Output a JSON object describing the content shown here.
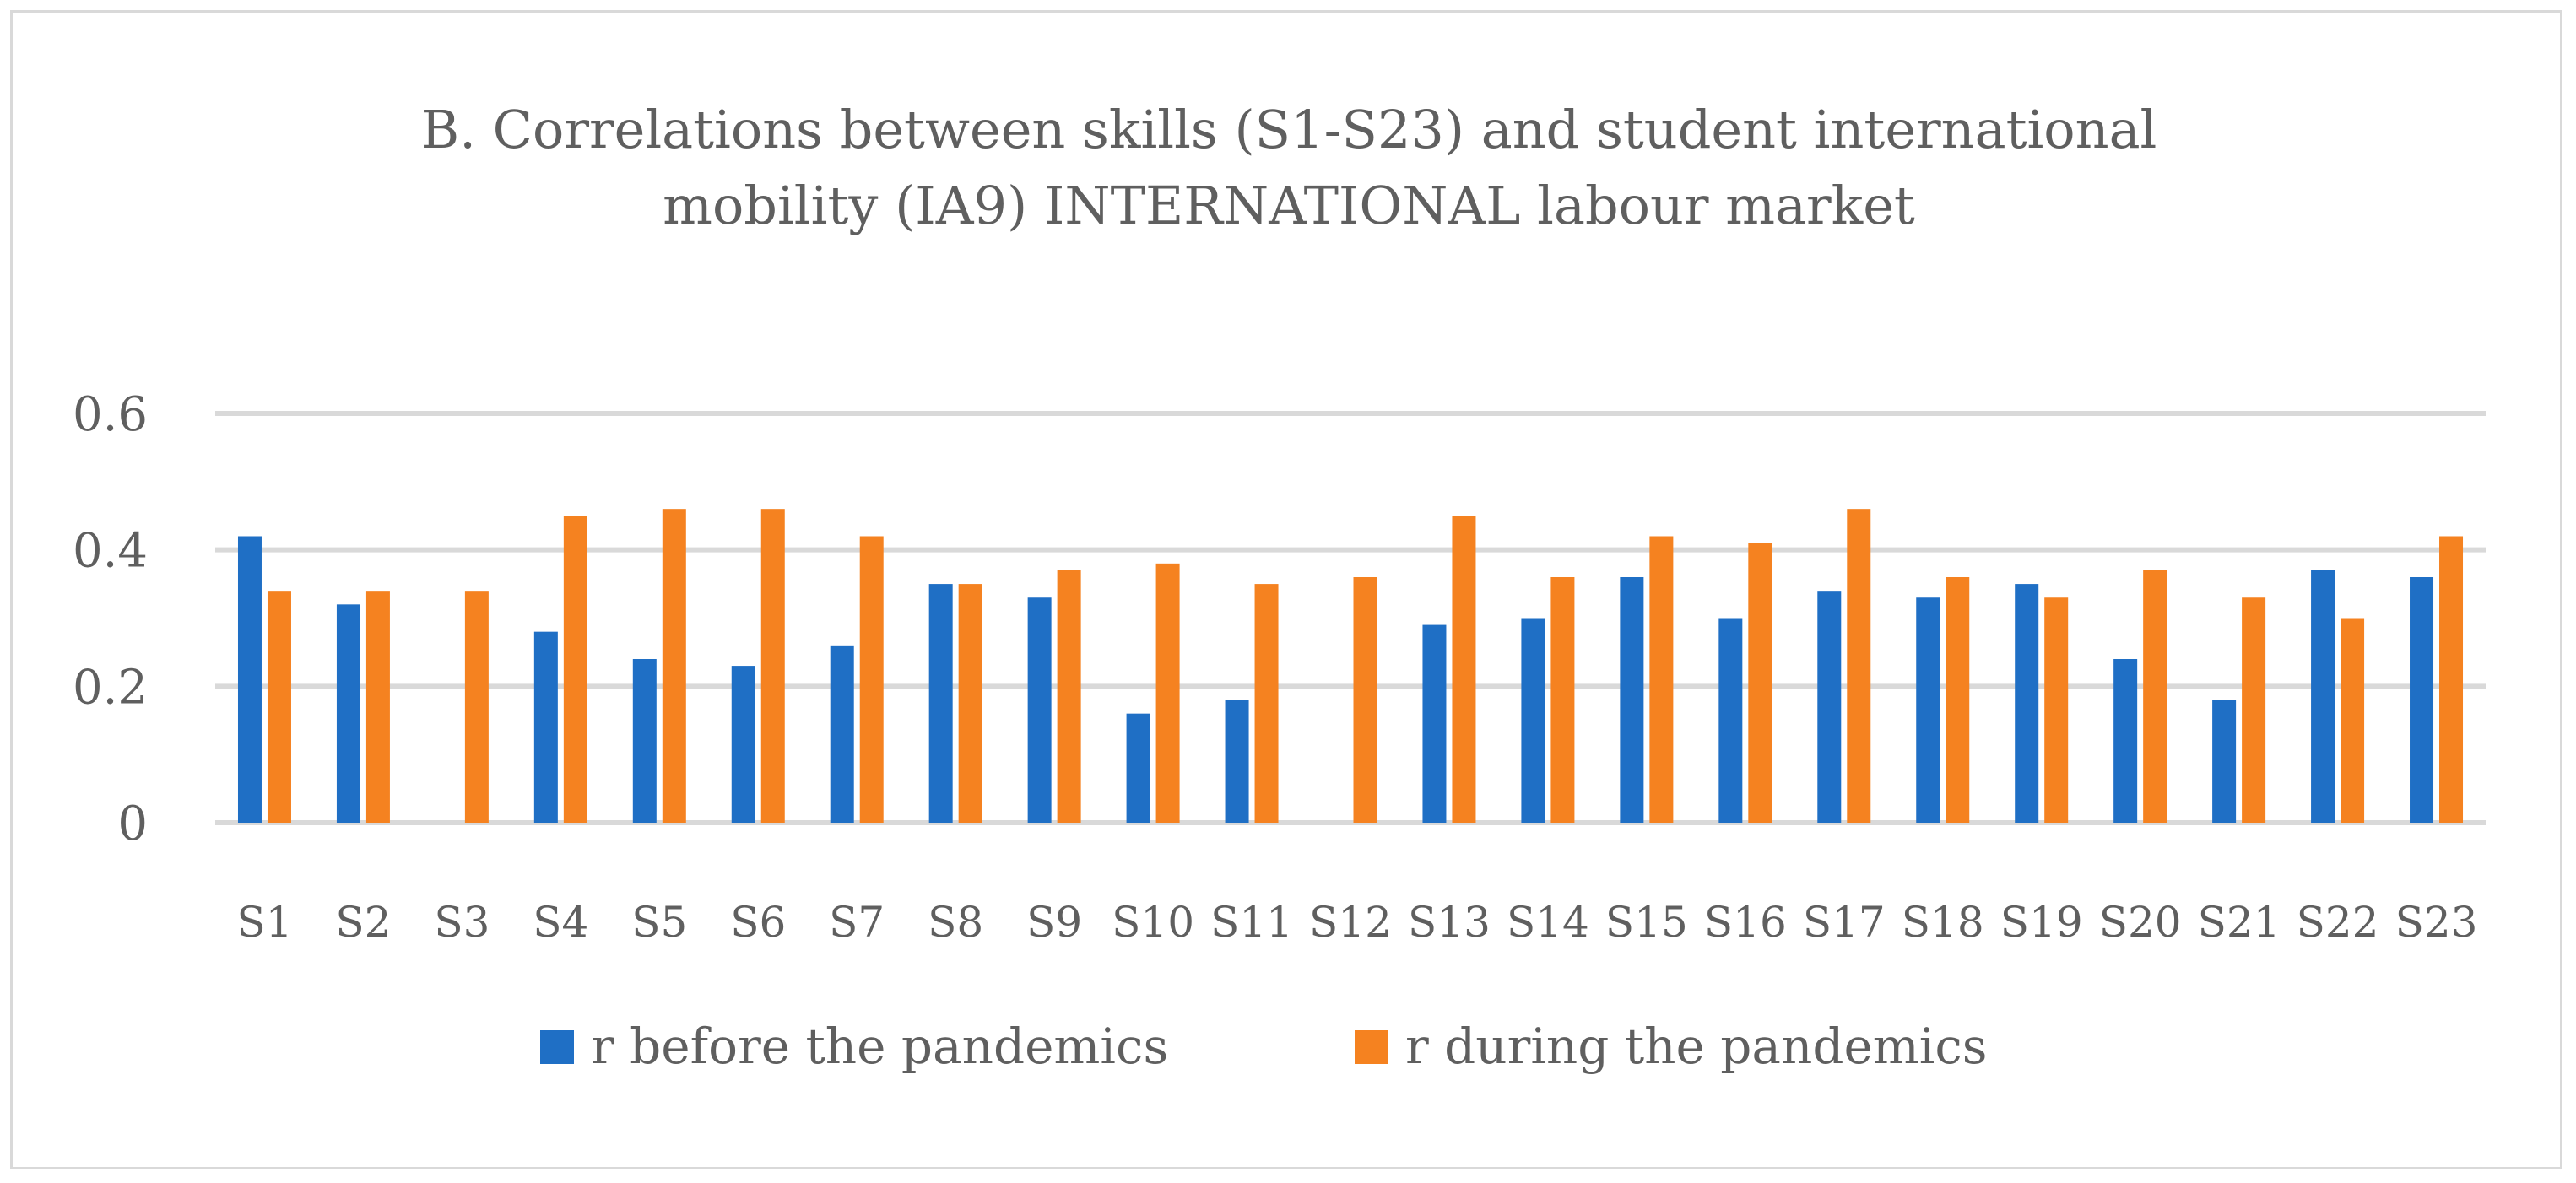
{
  "chart_data": {
    "type": "bar",
    "title_lines": [
      "B. Correlations between skills (S1-S23) and student international",
      "mobility (IA9) INTERNATIONAL labour market"
    ],
    "categories": [
      "S1",
      "S2",
      "S3",
      "S4",
      "S5",
      "S6",
      "S7",
      "S8",
      "S9",
      "S10",
      "S11",
      "S12",
      "S13",
      "S14",
      "S15",
      "S16",
      "S17",
      "S18",
      "S19",
      "S20",
      "S21",
      "S22",
      "S23"
    ],
    "series": [
      {
        "name": "r before the pandemics",
        "color": "#1f6fc5",
        "values": [
          0.42,
          0.32,
          0,
          0.28,
          0.24,
          0.23,
          0.26,
          0.35,
          0.33,
          0.16,
          0.18,
          0,
          0.29,
          0.3,
          0.36,
          0.3,
          0.34,
          0.33,
          0.35,
          0.24,
          0.18,
          0.37,
          0.36
        ]
      },
      {
        "name": "r during the pandemics",
        "color": "#f58220",
        "values": [
          0.34,
          0.34,
          0.34,
          0.45,
          0.46,
          0.46,
          0.42,
          0.35,
          0.37,
          0.38,
          0.35,
          0.36,
          0.45,
          0.36,
          0.42,
          0.41,
          0.46,
          0.36,
          0.33,
          0.37,
          0.33,
          0.3,
          0.42
        ]
      }
    ],
    "yticks": [
      "0",
      "0.2",
      "0.4",
      "0.6"
    ],
    "ylim": [
      0,
      0.6
    ],
    "grid": true,
    "legend_position": "bottom"
  }
}
